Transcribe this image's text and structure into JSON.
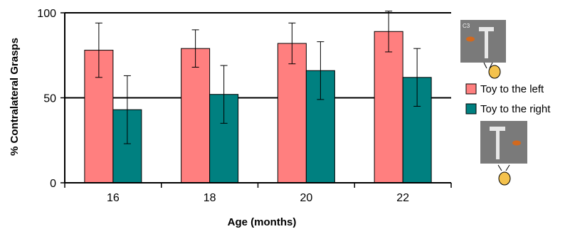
{
  "chart_data": {
    "type": "bar",
    "title": "",
    "xlabel": "Age (months)",
    "ylabel": "% Contralateral Grasps",
    "categories": [
      "16",
      "18",
      "20",
      "22"
    ],
    "ylim": [
      0,
      100
    ],
    "yticks": [
      0,
      50,
      100
    ],
    "grid": "horizontal lines at 50 and 100",
    "legend_position": "right",
    "series": [
      {
        "name": "Toy to the left",
        "color": "#FF7F7F",
        "values": [
          78,
          79,
          82,
          89
        ],
        "error": [
          16,
          11,
          12,
          12
        ]
      },
      {
        "name": "Toy to the right",
        "color": "#008080",
        "values": [
          43,
          52,
          66,
          62
        ],
        "error": [
          20,
          17,
          17,
          17
        ]
      }
    ]
  },
  "inset": {
    "top_image_label": "C3",
    "toy_icon": "orange-toy-icon",
    "apparatus_icon": "t-handle-icon",
    "infant_icon": "infant-head-icon"
  }
}
